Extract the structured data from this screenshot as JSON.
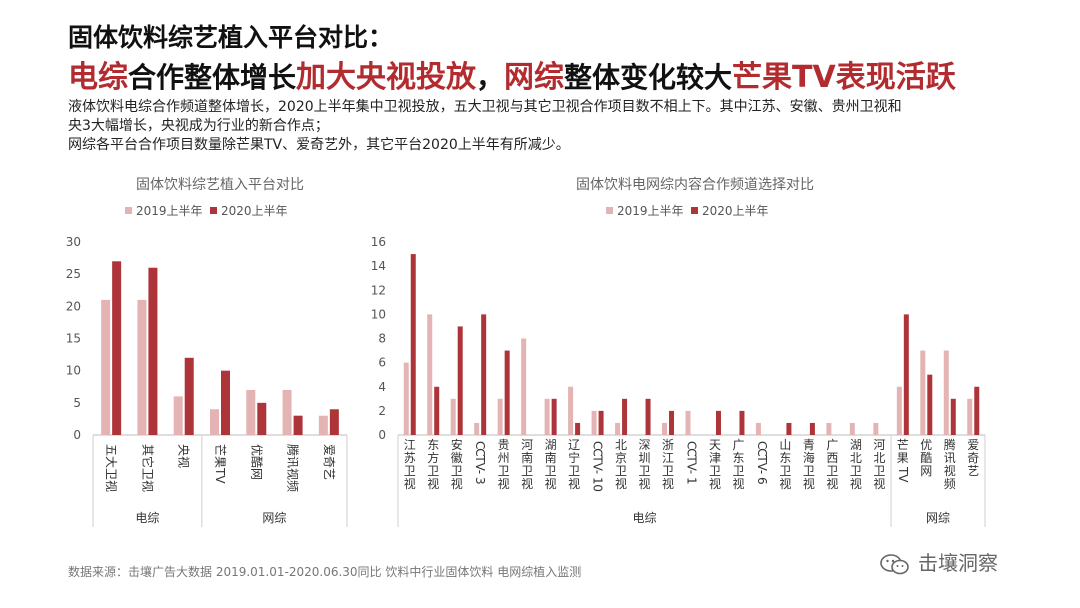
{
  "header": {
    "title_line1": "固体饮料综艺植入平台对比：",
    "title_line2": {
      "p1": "电综",
      "p2": "合作整体增长",
      "p3": "加大央视投放",
      "p4": "，",
      "p5": "网综",
      "p6": "整体变化较大",
      "p7": "芒果TV表现活跃"
    }
  },
  "description": [
    "液体饮料电综合作频道整体增长，2020上半年集中卫视投放，五大卫视与其它卫视合作项目数不相上下。其中江苏、安徽、贵州卫视和",
    "央3大幅增长，央视成为行业的新合作点；",
    "网综各平台合作项目数量除芒果TV、爱奇艺外，其它平台2020上半年有所减少。"
  ],
  "colors": {
    "s2019": "#e4b3b3",
    "s2020": "#ad3438",
    "accent": "#b22b2f"
  },
  "chart_data": [
    {
      "type": "bar",
      "title": "固体饮料综艺植入平台对比",
      "categories": [
        "五大卫视",
        "其它卫视",
        "央视",
        "芒果TV",
        "优酷网",
        "腾讯视频",
        "爱奇艺"
      ],
      "series": [
        {
          "name": "2019上半年",
          "values": [
            21,
            21,
            6,
            4,
            7,
            7,
            3
          ]
        },
        {
          "name": "2020上半年",
          "values": [
            27,
            26,
            12,
            10,
            5,
            3,
            4
          ]
        }
      ],
      "groups": [
        {
          "name": "电综",
          "count": 3
        },
        {
          "name": "网综",
          "count": 4
        }
      ],
      "ylim": [
        0,
        30
      ],
      "yticks": [
        0,
        5,
        10,
        15,
        20,
        25,
        30
      ],
      "legend": "top"
    },
    {
      "type": "bar",
      "title": "固体饮料电网综内容合作频道选择对比",
      "categories": [
        "江苏卫视",
        "东方卫视",
        "安徽卫视",
        "CCTV-3",
        "贵州卫视",
        "河南卫视",
        "湖南卫视",
        "辽宁卫视",
        "CCTV-10",
        "北京卫视",
        "深圳卫视",
        "浙江卫视",
        "CCTV-1",
        "天津卫视",
        "广东卫视",
        "CCTV-6",
        "山东卫视",
        "青海卫视",
        "广西卫视",
        "湖北卫视",
        "河北卫视",
        "芒果TV",
        "优酷网",
        "腾讯视频",
        "爱奇艺"
      ],
      "series": [
        {
          "name": "2019上半年",
          "values": [
            6,
            10,
            3,
            1,
            3,
            8,
            3,
            4,
            2,
            1,
            0,
            1,
            2,
            0,
            0,
            1,
            0,
            0,
            1,
            1,
            1,
            4,
            7,
            7,
            3
          ]
        },
        {
          "name": "2020上半年",
          "values": [
            15,
            4,
            9,
            10,
            7,
            0,
            3,
            1,
            2,
            3,
            3,
            2,
            0,
            2,
            2,
            0,
            1,
            1,
            0,
            0,
            0,
            10,
            5,
            3,
            4
          ]
        }
      ],
      "groups": [
        {
          "name": "电综",
          "count": 21
        },
        {
          "name": "网综",
          "count": 4
        }
      ],
      "ylim": [
        0,
        16
      ],
      "yticks": [
        0,
        2,
        4,
        6,
        8,
        10,
        12,
        14,
        16
      ],
      "legend": "top"
    }
  ],
  "footer": {
    "source": "数据来源：击壤广告大数据 2019.01.01-2020.06.30同比 饮料中行业固体饮料 电网综植入监测"
  },
  "brand": {
    "name": "击壤洞察",
    "icon": "wechat-icon"
  }
}
